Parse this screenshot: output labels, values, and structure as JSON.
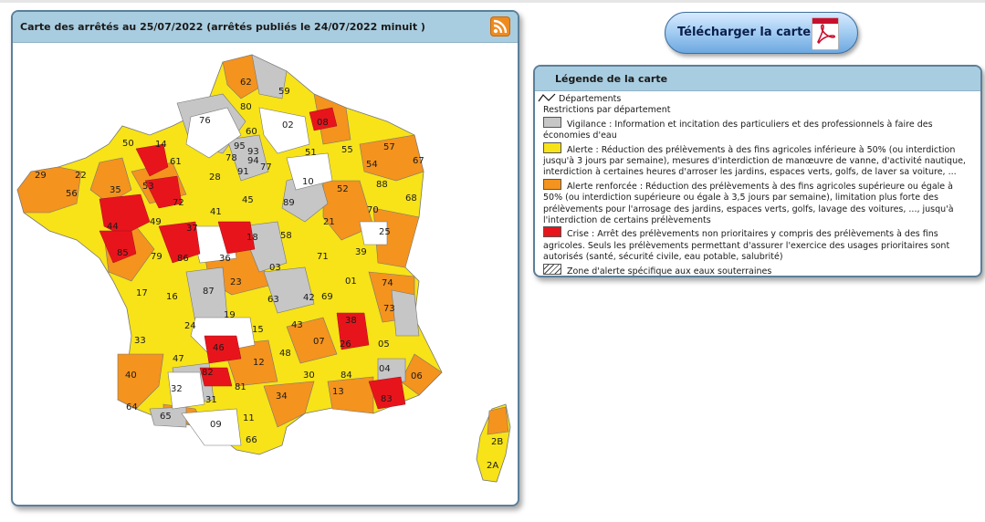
{
  "map": {
    "title": "Carte des arrêtés au 25/07/2022 (arrêtés publiés le 24/07/2022 minuit )",
    "rss_icon": "rss-feed-icon",
    "department_labels": [
      "62",
      "59",
      "80",
      "76",
      "02",
      "08",
      "60",
      "50",
      "14",
      "95",
      "51",
      "55",
      "57",
      "67",
      "93",
      "78",
      "94",
      "77",
      "54",
      "61",
      "91",
      "88",
      "29",
      "22",
      "35",
      "53",
      "28",
      "52",
      "68",
      "10",
      "56",
      "72",
      "45",
      "70",
      "89",
      "25",
      "21",
      "44",
      "49",
      "37",
      "41",
      "58",
      "18",
      "39",
      "85",
      "79",
      "86",
      "71",
      "03",
      "36",
      "01",
      "74",
      "87",
      "23",
      "17",
      "16",
      "73",
      "63",
      "42",
      "69",
      "19",
      "38",
      "33",
      "24",
      "15",
      "43",
      "26",
      "07",
      "05",
      "46",
      "12",
      "48",
      "47",
      "04",
      "84",
      "82",
      "06",
      "40",
      "81",
      "30",
      "13",
      "32",
      "34",
      "83",
      "31",
      "64",
      "65",
      "11",
      "09",
      "66",
      "2B",
      "2A"
    ]
  },
  "download": {
    "label": "Télécharger la carte",
    "icon": "pdf-icon"
  },
  "legend": {
    "title": "Légende de la carte",
    "departements_label": "Départements",
    "restrictions_label": "Restrictions par département",
    "items": [
      {
        "color": "#c6c6c6",
        "text": "Vigilance : Information et incitation des particuliers et des professionnels à faire des économies d'eau"
      },
      {
        "color": "#f7e318",
        "text": "Alerte : Réduction des prélèvements à des fins agricoles inférieure à 50% (ou interdiction jusqu'à 3 jours par semaine), mesures d'interdiction de manœuvre de vanne, d'activité nautique, interdiction à certaines heures d'arroser les jardins, espaces verts, golfs, de laver sa voiture, ..."
      },
      {
        "color": "#f4931e",
        "text": "Alerte renforcée : Réduction des prélèvements à des fins agricoles supérieure ou égale à 50% (ou interdiction supérieure ou égale à 3,5 jours par semaine), limitation plus forte des prélèvements pour l'arrosage des jardins, espaces verts, golfs, lavage des voitures, ..., jusqu'à l'interdiction de certains prélèvements"
      },
      {
        "color": "#e8141c",
        "text": "Crise : Arrêt des prélèvements non prioritaires y compris des prélèvements à des fins agricoles. Seuls les prélèvements permettant d'assurer l'exercice des usages prioritaires sont autorisés (santé, sécurité civile, eau potable, salubrité)"
      }
    ],
    "hatch_label": "Zone d'alerte spécifique aux eaux souterraines"
  },
  "colors": {
    "vigilance": "#c6c6c6",
    "alerte": "#f7e318",
    "alerte_renforcee": "#f4931e",
    "crise": "#e8141c",
    "panel_header": "#a9cde0"
  }
}
